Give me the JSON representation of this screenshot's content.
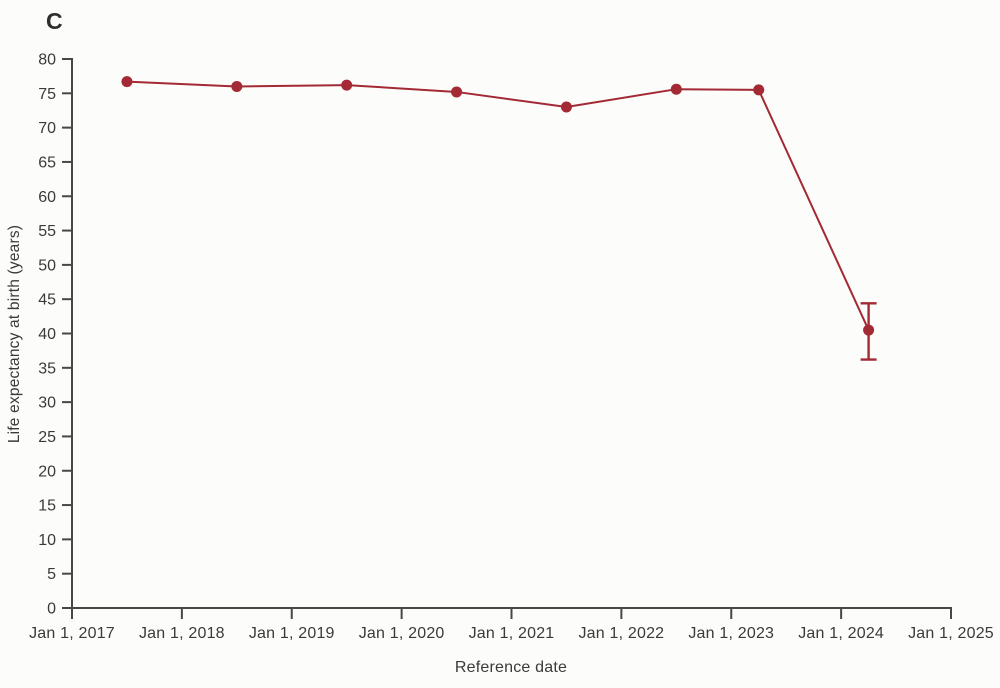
{
  "panel_label": "C",
  "colors": {
    "series": "#a32934",
    "axis": "#474747",
    "text": "#3a3a3a",
    "background": "#fcfcfa"
  },
  "chart_data": {
    "type": "line",
    "title": "",
    "xlabel": "Reference date",
    "ylabel": "Life expectancy at birth (years)",
    "xlim": [
      2017,
      2025
    ],
    "ylim": [
      0,
      80
    ],
    "grid": false,
    "legend": "none",
    "x_tick_values": [
      2017,
      2018,
      2019,
      2020,
      2021,
      2022,
      2023,
      2024,
      2025
    ],
    "x_tick_labels": [
      "Jan 1, 2017",
      "Jan 1, 2018",
      "Jan 1, 2019",
      "Jan 1, 2020",
      "Jan 1, 2021",
      "Jan 1, 2022",
      "Jan 1, 2023",
      "Jan 1, 2024",
      "Jan 1, 2025"
    ],
    "y_ticks": [
      0,
      5,
      10,
      15,
      20,
      25,
      30,
      35,
      40,
      45,
      50,
      55,
      60,
      65,
      70,
      75,
      80
    ],
    "series": [
      {
        "name": "Life expectancy at birth",
        "color": "#a32934",
        "x": [
          2017.5,
          2018.5,
          2019.5,
          2020.5,
          2021.5,
          2022.5,
          2023.25,
          2024.25
        ],
        "y": [
          76.7,
          76.0,
          76.2,
          75.2,
          73.0,
          75.6,
          75.5,
          40.5
        ],
        "error_bars": [
          {
            "x": 2024.25,
            "y": 40.5,
            "low": 36.2,
            "high": 44.4
          }
        ]
      }
    ]
  }
}
